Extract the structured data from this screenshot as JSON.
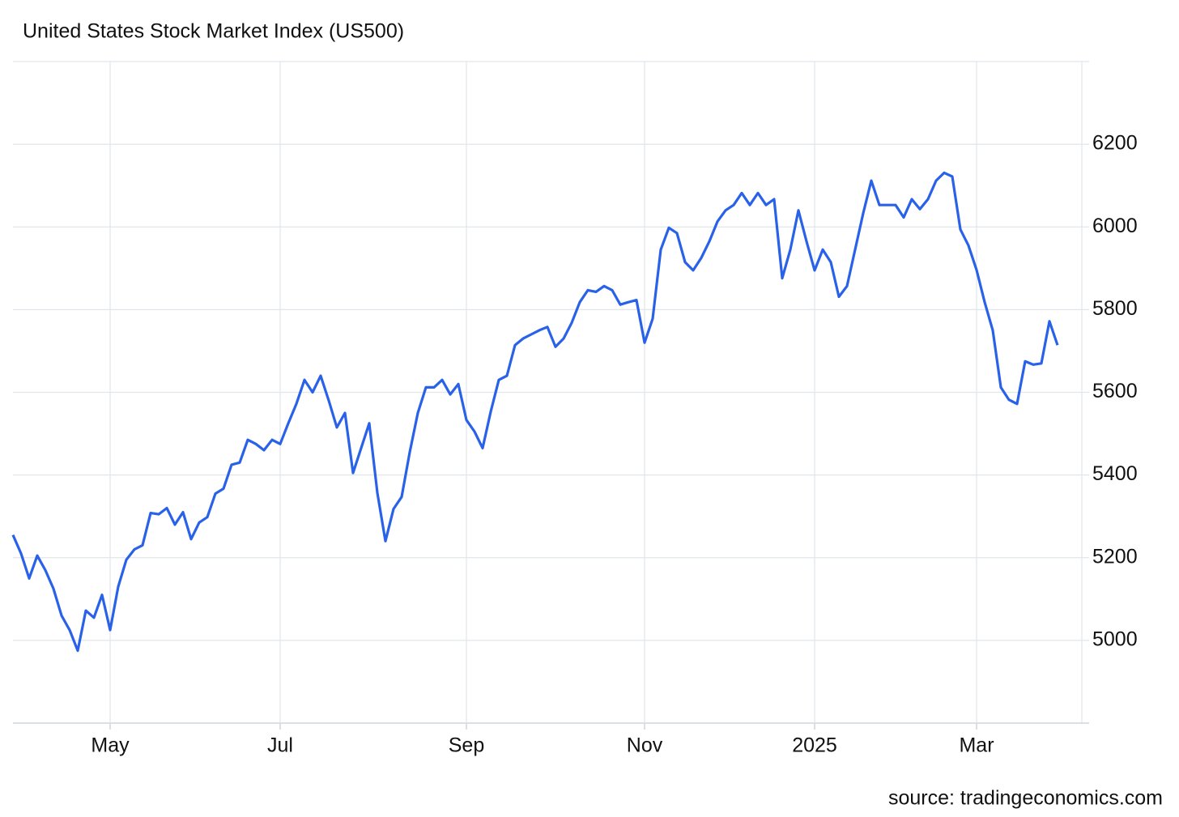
{
  "chart_data": {
    "type": "line",
    "title": "United States Stock Market Index (US500)",
    "source": "source: tradingeconomics.com",
    "categories": [
      null,
      null,
      null,
      null,
      null,
      null,
      null,
      null,
      null,
      null,
      null,
      null,
      "May",
      null,
      null,
      null,
      null,
      null,
      null,
      null,
      null,
      null,
      null,
      null,
      null,
      null,
      null,
      null,
      null,
      null,
      null,
      null,
      null,
      "Jul",
      null,
      null,
      null,
      null,
      null,
      null,
      null,
      null,
      null,
      null,
      null,
      null,
      null,
      null,
      null,
      null,
      null,
      null,
      null,
      null,
      null,
      null,
      "Sep",
      null,
      null,
      null,
      null,
      null,
      null,
      null,
      null,
      null,
      null,
      null,
      null,
      null,
      null,
      null,
      null,
      null,
      null,
      null,
      null,
      null,
      "Nov",
      null,
      null,
      null,
      null,
      null,
      null,
      null,
      null,
      null,
      null,
      null,
      null,
      null,
      null,
      null,
      null,
      null,
      null,
      null,
      null,
      "2025",
      null,
      null,
      null,
      null,
      null,
      null,
      null,
      null,
      null,
      null,
      null,
      null,
      null,
      null,
      null,
      null,
      null,
      null,
      null,
      "Mar",
      null,
      null,
      null,
      null,
      null,
      null,
      null,
      null,
      null,
      null
    ],
    "series": [
      {
        "name": "US500",
        "color": "#2962e8",
        "values": [
          5255,
          5210,
          5150,
          5205,
          5170,
          5125,
          5060,
          5025,
          4975,
          5072,
          5055,
          5110,
          5025,
          5130,
          5195,
          5220,
          5230,
          5308,
          5305,
          5320,
          5280,
          5310,
          5245,
          5285,
          5298,
          5355,
          5367,
          5425,
          5430,
          5485,
          5475,
          5460,
          5485,
          5475,
          5525,
          5572,
          5630,
          5600,
          5640,
          5580,
          5515,
          5550,
          5405,
          5465,
          5525,
          5357,
          5240,
          5318,
          5347,
          5455,
          5550,
          5612,
          5612,
          5630,
          5595,
          5620,
          5533,
          5505,
          5465,
          5553,
          5630,
          5640,
          5714,
          5730,
          5740,
          5750,
          5758,
          5710,
          5730,
          5768,
          5818,
          5847,
          5843,
          5857,
          5847,
          5812,
          5818,
          5823,
          5720,
          5778,
          5945,
          5998,
          5985,
          5915,
          5895,
          5925,
          5965,
          6013,
          6040,
          6053,
          6082,
          6053,
          6082,
          6053,
          6067,
          5876,
          5945,
          6040,
          5965,
          5895,
          5945,
          5915,
          5831,
          5857,
          5945,
          6033,
          6112,
          6053,
          6053,
          6053,
          6023,
          6067,
          6043,
          6067,
          6112,
          6131,
          6122,
          5994,
          5955,
          5896,
          5818,
          5750,
          5612,
          5582,
          5572,
          5675,
          5667,
          5670,
          5772,
          5714
        ]
      }
    ],
    "ylim": [
      4800,
      6400
    ],
    "yticks": [
      5000,
      5200,
      5400,
      5600,
      5800,
      6000,
      6200
    ],
    "grid": true
  }
}
